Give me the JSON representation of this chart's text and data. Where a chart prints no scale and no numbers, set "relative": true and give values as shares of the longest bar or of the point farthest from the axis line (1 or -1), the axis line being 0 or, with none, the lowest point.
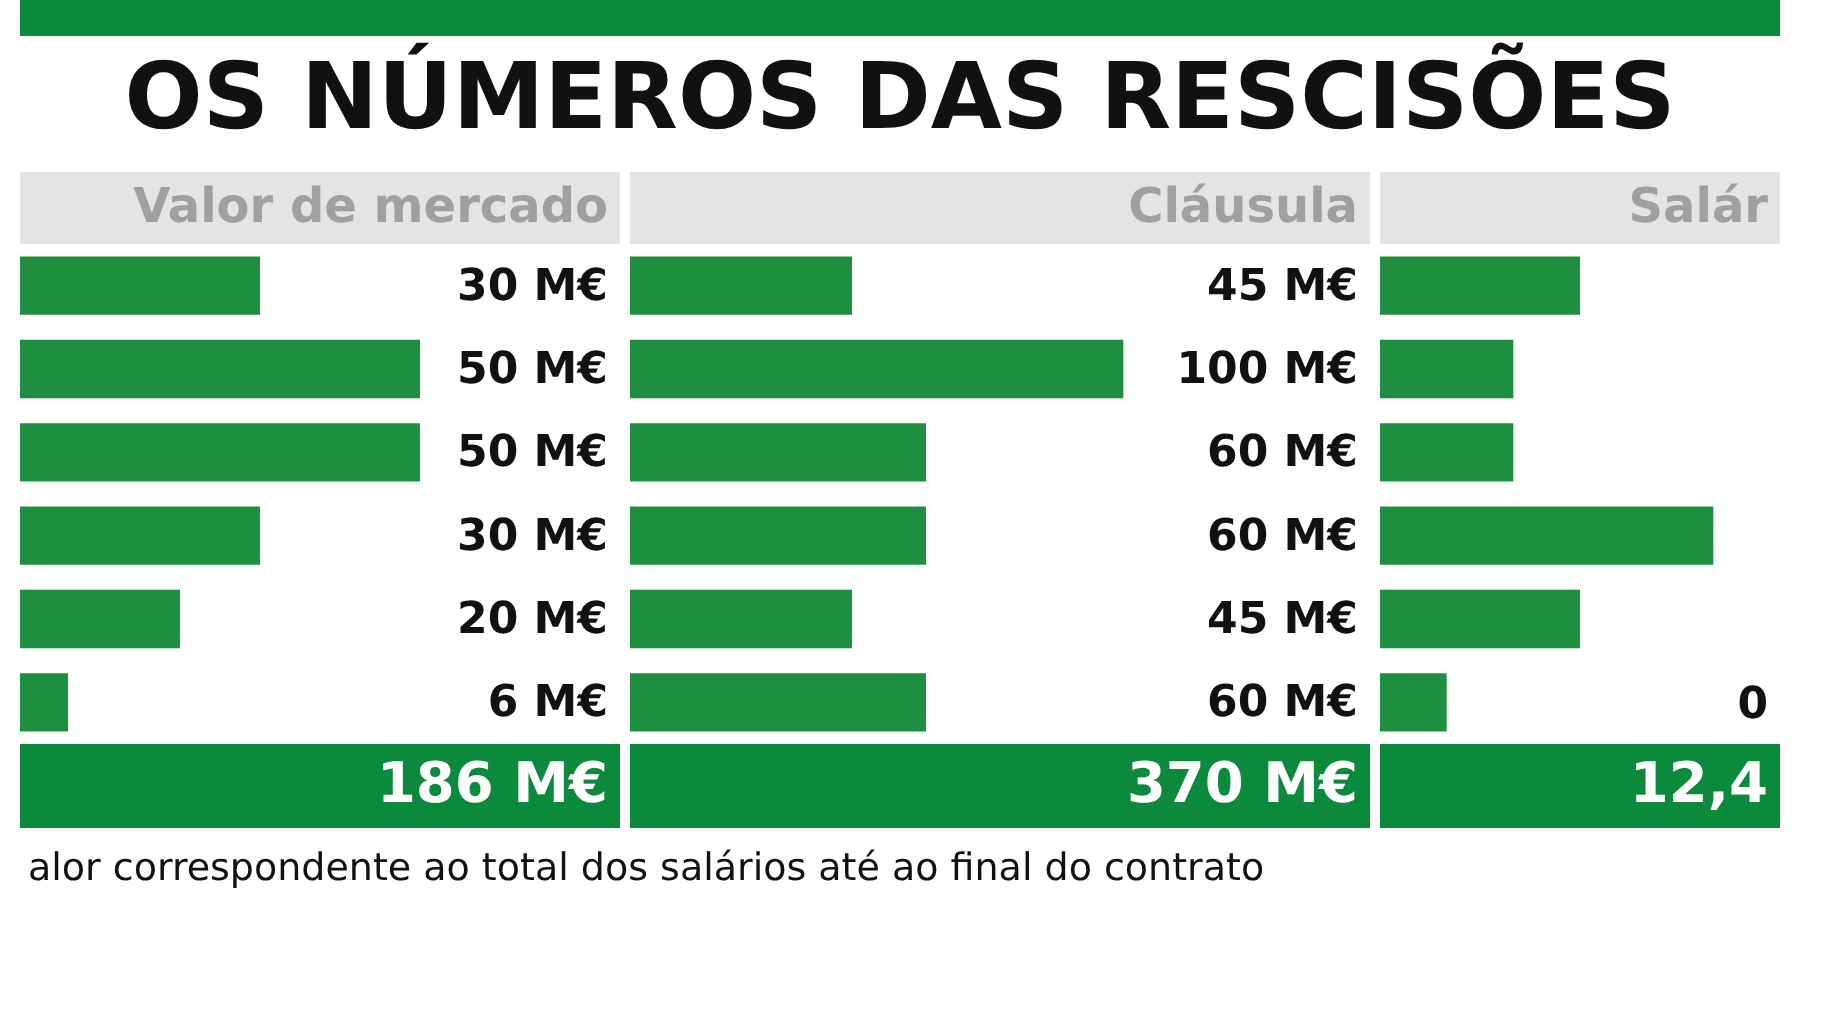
{
  "chart_data": [
    {
      "type": "bar",
      "orientation": "horizontal",
      "title": "OS NÚMEROS DAS RESCISÕES",
      "subtitle": "Valor de mercado",
      "categories": [
        null,
        null,
        null,
        null,
        null,
        null
      ],
      "values": [
        30,
        50,
        50,
        30,
        20,
        6
      ],
      "color": "#1e8f3e",
      "value_labels": [
        "30 M€",
        "50 M€",
        "50 M€",
        "30 M€",
        "20 M€",
        "6 M€"
      ],
      "annotations": [
        "186 M€",
        "alor correspondente ao total dos salários até ao final do contrato"
      ]
    },
    {
      "type": "bar",
      "orientation": "horizontal",
      "subtitle": "Cláusula",
      "categories": [
        null,
        null,
        null,
        null,
        null,
        null
      ],
      "values": [
        45,
        100,
        60,
        60,
        45,
        60
      ],
      "color": "#1e8f3e",
      "value_labels": [
        "45 M€",
        "100 M€",
        "60 M€",
        "60 M€",
        "45 M€",
        "60 M€"
      ],
      "annotations": [
        "370 M€"
      ]
    },
    {
      "type": "bar",
      "orientation": "horizontal",
      "relative": true,
      "subtitle": "Salár",
      "categories": [
        null,
        null,
        null,
        null,
        null,
        null
      ],
      "values": [
        0.6,
        0.4,
        0.4,
        1,
        0.6,
        0.2
      ],
      "color": "#1e8f3e",
      "annotations": [
        "12,4",
        "0"
      ]
    }
  ]
}
